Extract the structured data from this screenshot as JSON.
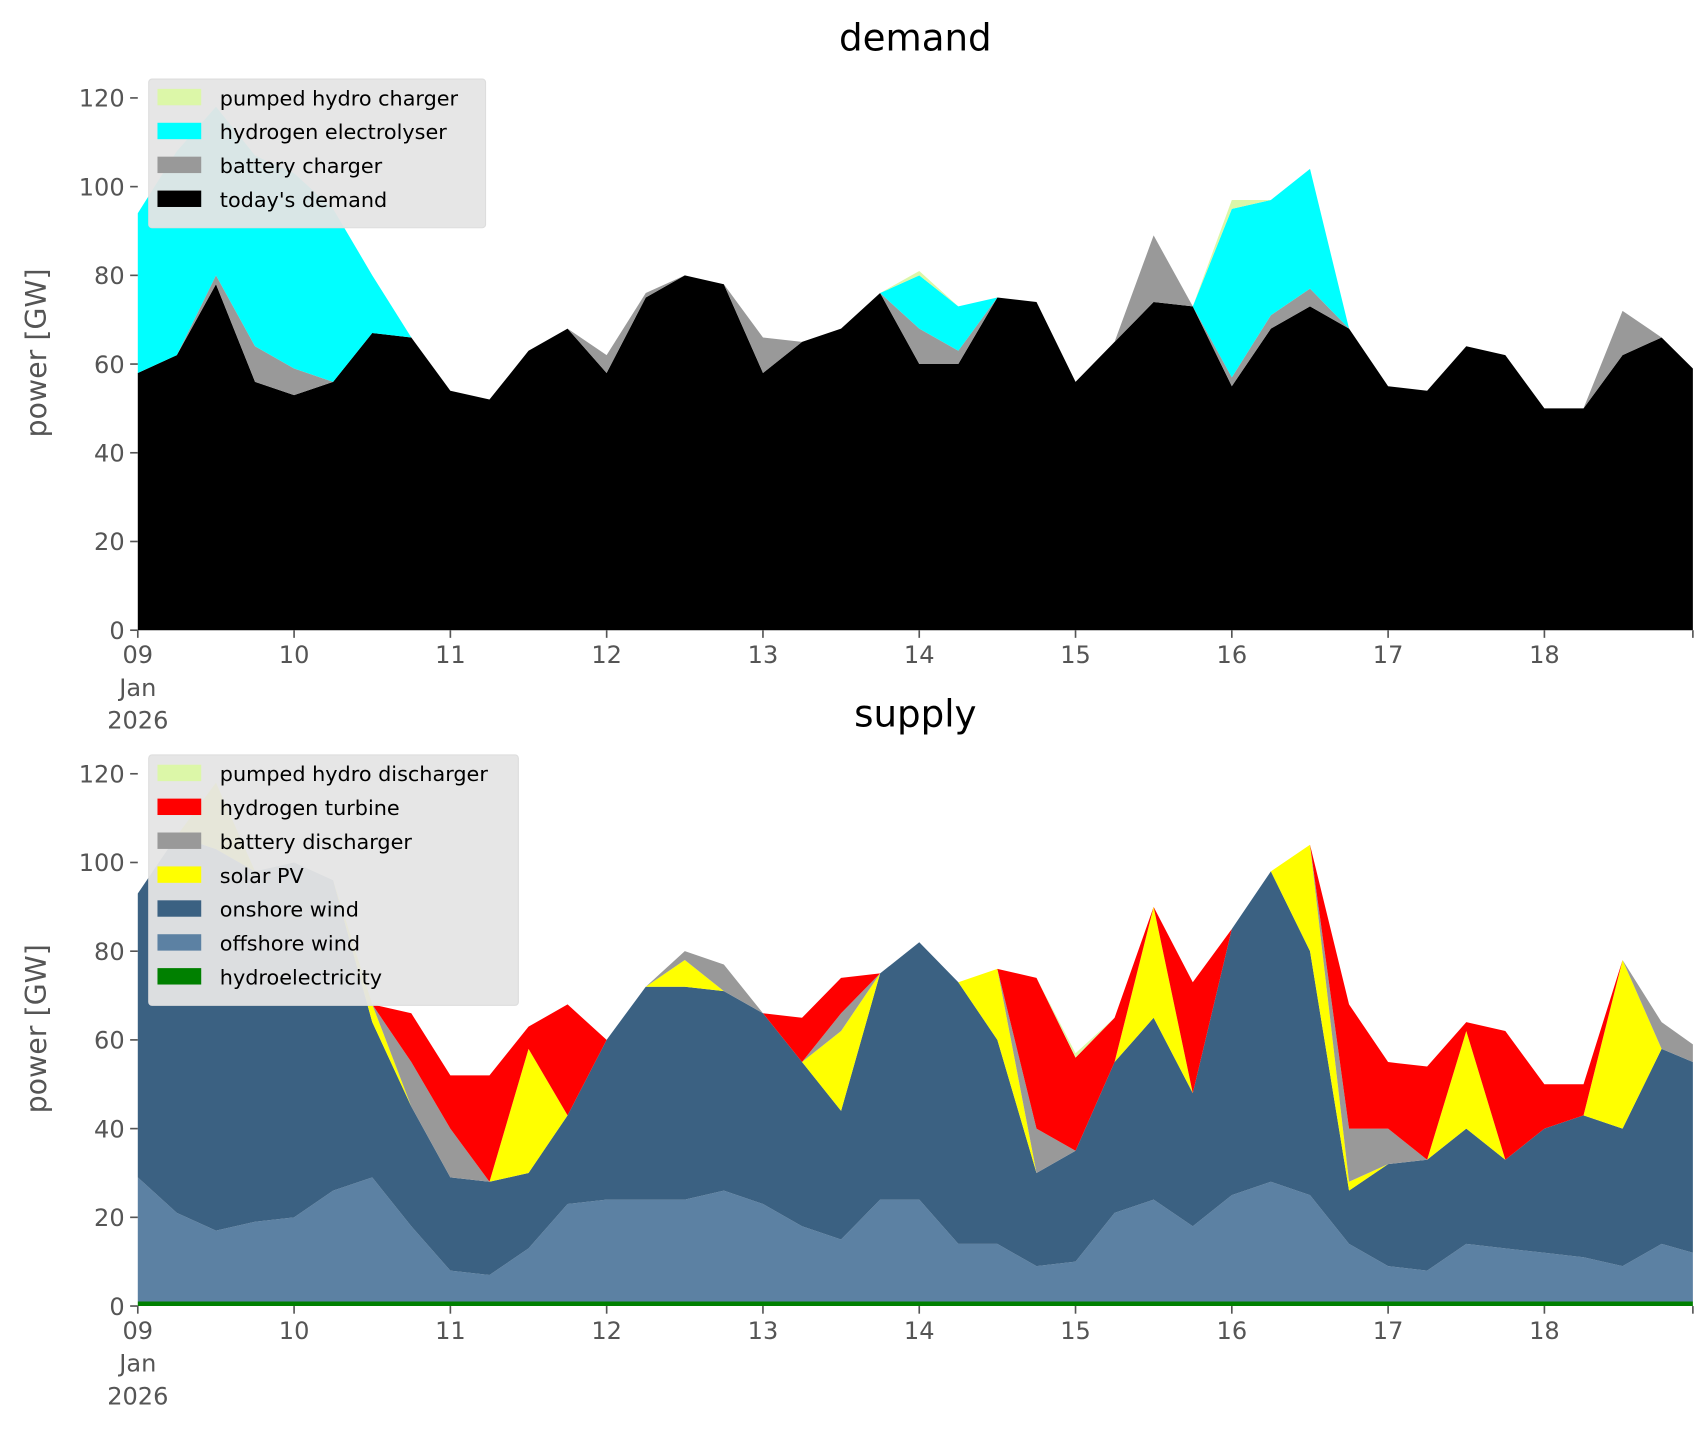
{
  "chart_data": [
    {
      "type": "area",
      "title": "demand",
      "ylabel": "power [GW]",
      "legend": "upper left",
      "x": [
        9,
        9.25,
        9.5,
        9.75,
        10,
        10.25,
        10.5,
        10.75,
        11,
        11.25,
        11.5,
        11.75,
        12,
        12.25,
        12.5,
        12.75,
        13,
        13.25,
        13.5,
        13.75,
        14,
        14.25,
        14.5,
        14.75,
        15,
        15.25,
        15.5,
        15.75,
        16,
        16.25,
        16.5,
        16.75,
        17,
        17.25,
        17.5,
        17.75,
        18,
        18.25,
        18.5,
        18.75,
        18.95
      ],
      "xlim": [
        9,
        18.95
      ],
      "xticks": [
        {
          "value": 9,
          "label": "09\nJan\n2026"
        },
        10,
        11,
        12,
        13,
        14,
        15,
        16,
        17,
        18
      ],
      "ylim": [
        0,
        125
      ],
      "yticks": [
        0,
        20,
        40,
        60,
        80,
        100,
        120
      ],
      "series": [
        {
          "name": "today's demand",
          "color": "#000000",
          "values": [
            58,
            62,
            78,
            56,
            53,
            56,
            67,
            66,
            54,
            52,
            63,
            68,
            58,
            75,
            80,
            78,
            58,
            65,
            68,
            76,
            60,
            60,
            75,
            74,
            56,
            65,
            74,
            73,
            55,
            68,
            73,
            68,
            55,
            54,
            64,
            62,
            50,
            50,
            62,
            66,
            59
          ]
        },
        {
          "name": "battery charger",
          "color": "#999999",
          "values": [
            0,
            0,
            2,
            8,
            6,
            0,
            0,
            0,
            0,
            0,
            0,
            0,
            4,
            1,
            0,
            0,
            8,
            0,
            0,
            0,
            8,
            3,
            0,
            0,
            0,
            0,
            15,
            0,
            2,
            3,
            4,
            0,
            0,
            0,
            0,
            0,
            0,
            0,
            10,
            0,
            0
          ]
        },
        {
          "name": "hydrogen electrolyser",
          "color": "#00ffff",
          "values": [
            36,
            46,
            38,
            43,
            44,
            39,
            13,
            0,
            0,
            0,
            0,
            0,
            0,
            0,
            0,
            0,
            0,
            0,
            0,
            0,
            12,
            10,
            0,
            0,
            0,
            0,
            0,
            0,
            38,
            26,
            27,
            0,
            0,
            0,
            0,
            0,
            0,
            0,
            0,
            0,
            0
          ]
        },
        {
          "name": "pumped hydro charger",
          "color": "#dcf7a8",
          "values": [
            0,
            0,
            0,
            0,
            0,
            0,
            0,
            0,
            0,
            0,
            0,
            0,
            0,
            0,
            0,
            0,
            0,
            0,
            0,
            0,
            1,
            0,
            0,
            0,
            0,
            0,
            0,
            0,
            2,
            0,
            0,
            0,
            0,
            0,
            0,
            0,
            0,
            0,
            0,
            0,
            0
          ]
        }
      ]
    },
    {
      "type": "area",
      "title": "supply",
      "ylabel": "power [GW]",
      "legend": "upper left",
      "x": [
        9,
        9.25,
        9.5,
        9.75,
        10,
        10.25,
        10.5,
        10.75,
        11,
        11.25,
        11.5,
        11.75,
        12,
        12.25,
        12.5,
        12.75,
        13,
        13.25,
        13.5,
        13.75,
        14,
        14.25,
        14.5,
        14.75,
        15,
        15.25,
        15.5,
        15.75,
        16,
        16.25,
        16.5,
        16.75,
        17,
        17.25,
        17.5,
        17.75,
        18,
        18.25,
        18.5,
        18.75,
        18.95
      ],
      "xlim": [
        9,
        18.95
      ],
      "xticks": [
        {
          "value": 9,
          "label": "09\nJan\n2026"
        },
        10,
        11,
        12,
        13,
        14,
        15,
        16,
        17,
        18
      ],
      "ylim": [
        0,
        125
      ],
      "yticks": [
        0,
        20,
        40,
        60,
        80,
        100,
        120
      ],
      "series": [
        {
          "name": "hydroelectricity",
          "color": "#008000",
          "values": [
            1,
            1,
            1,
            1,
            1,
            1,
            1,
            1,
            1,
            1,
            1,
            1,
            1,
            1,
            1,
            1,
            1,
            1,
            1,
            1,
            1,
            1,
            1,
            1,
            1,
            1,
            1,
            1,
            1,
            1,
            1,
            1,
            1,
            1,
            1,
            1,
            1,
            1,
            1,
            1,
            1
          ]
        },
        {
          "name": "offshore wind",
          "color": "#5c81a3",
          "values": [
            28,
            20,
            16,
            18,
            19,
            25,
            28,
            17,
            7,
            6,
            12,
            22,
            23,
            23,
            23,
            25,
            22,
            17,
            14,
            23,
            23,
            13,
            13,
            8,
            9,
            20,
            23,
            17,
            24,
            27,
            24,
            13,
            8,
            7,
            13,
            12,
            11,
            10,
            8,
            13,
            11
          ]
        },
        {
          "name": "onshore wind",
          "color": "#3b6182",
          "values": [
            64,
            85,
            86,
            79,
            80,
            70,
            35,
            27,
            21,
            21,
            17,
            20,
            36,
            48,
            48,
            45,
            43,
            37,
            29,
            51,
            58,
            59,
            46,
            21,
            25,
            34,
            41,
            30,
            60,
            70,
            55,
            12,
            23,
            25,
            26,
            20,
            28,
            32,
            31,
            44,
            43
          ]
        },
        {
          "name": "solar PV",
          "color": "#ffff00",
          "values": [
            0,
            0,
            15,
            0,
            0,
            0,
            4,
            0,
            0,
            0,
            28,
            0,
            0,
            0,
            6,
            0,
            0,
            0,
            18,
            0,
            0,
            0,
            16,
            0,
            0,
            0,
            25,
            0,
            0,
            0,
            24,
            2,
            0,
            0,
            22,
            0,
            0,
            0,
            38,
            0,
            0
          ]
        },
        {
          "name": "battery discharger",
          "color": "#999999",
          "values": [
            0,
            0,
            0,
            0,
            0,
            0,
            0,
            10,
            11,
            0,
            0,
            0,
            0,
            0,
            2,
            6,
            0,
            0,
            4,
            0,
            0,
            0,
            0,
            10,
            0,
            0,
            0,
            0,
            0,
            0,
            0,
            12,
            8,
            0,
            0,
            0,
            0,
            0,
            0,
            6,
            4
          ]
        },
        {
          "name": "hydrogen turbine",
          "color": "#ff0000",
          "values": [
            0,
            0,
            0,
            0,
            0,
            0,
            0,
            11,
            12,
            24,
            5,
            25,
            0,
            0,
            0,
            0,
            0,
            10,
            8,
            0,
            0,
            0,
            0,
            34,
            21,
            10,
            0,
            25,
            0,
            0,
            0,
            28,
            15,
            21,
            2,
            29,
            10,
            7,
            0,
            0,
            0
          ]
        },
        {
          "name": "pumped hydro discharger",
          "color": "#dcf7a8",
          "values": [
            0,
            0,
            0,
            0,
            0,
            0,
            0,
            0,
            0,
            0,
            0,
            0,
            0,
            0,
            0,
            0,
            0,
            0,
            0,
            0,
            0,
            0,
            0,
            0,
            1,
            0,
            0,
            0,
            0,
            0,
            0,
            0,
            0,
            0,
            0,
            0,
            0,
            0,
            0,
            0,
            0
          ]
        }
      ]
    }
  ]
}
